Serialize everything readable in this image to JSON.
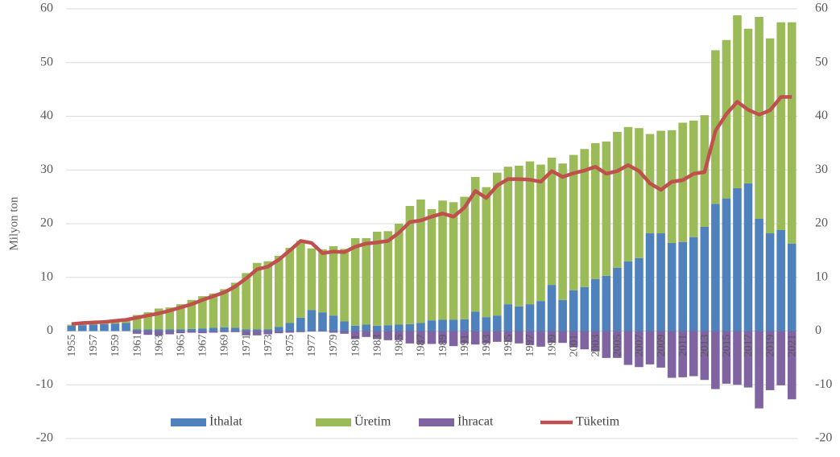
{
  "chart_data": {
    "type": "bar",
    "stacked": true,
    "ylabel": "Milyon ton",
    "categories": [
      "1955",
      null,
      "1957",
      null,
      "1959",
      null,
      "1961",
      null,
      "1963",
      null,
      "1965",
      null,
      "1967",
      null,
      "1969",
      null,
      "1971",
      null,
      "1973",
      null,
      "1975",
      null,
      "1977",
      null,
      "1979",
      null,
      "1981",
      null,
      "1983",
      null,
      "1985",
      null,
      "1987",
      null,
      "1989",
      null,
      "1991",
      null,
      "1993",
      null,
      "1995",
      null,
      "1997",
      null,
      "1999",
      null,
      "2001",
      null,
      "2003",
      null,
      "2005",
      null,
      "2007",
      null,
      "2009",
      null,
      "2011",
      null,
      "2013",
      null,
      "2015",
      null,
      "2017",
      null,
      "2019",
      null,
      "2021"
    ],
    "series": [
      {
        "name": "İthalat",
        "type": "bar",
        "color": "#4f81bd",
        "values": [
          1.0,
          1.1,
          1.2,
          1.3,
          1.4,
          1.5,
          0.3,
          0.3,
          0.3,
          0.3,
          0.3,
          0.4,
          0.5,
          0.6,
          0.7,
          0.6,
          0.3,
          0.3,
          0.3,
          0.8,
          1.5,
          2.5,
          3.9,
          3.5,
          2.9,
          1.8,
          1.0,
          1.2,
          1.0,
          1.1,
          1.2,
          1.3,
          1.5,
          2.0,
          2.1,
          2.1,
          2.2,
          3.6,
          2.6,
          2.9,
          5.0,
          4.6,
          5.0,
          5.6,
          8.6,
          5.8,
          7.6,
          8.2,
          9.7,
          10.3,
          11.8,
          13.0,
          13.6,
          18.2,
          18.2,
          16.4,
          16.6,
          17.5,
          19.4,
          23.7,
          24.7,
          26.6,
          27.5,
          20.9,
          18.2,
          18.8,
          16.3
        ]
      },
      {
        "name": "Üretim",
        "type": "bar",
        "color": "#9bbb59",
        "values": [
          0.2,
          0.3,
          0.3,
          0.4,
          0.5,
          0.6,
          2.7,
          3.2,
          3.9,
          4.1,
          4.7,
          5.4,
          6.0,
          6.4,
          7.1,
          8.4,
          10.5,
          12.4,
          12.7,
          13.2,
          14.0,
          14.3,
          11.5,
          11.7,
          12.9,
          13.5,
          16.3,
          16.1,
          17.5,
          17.5,
          18.8,
          22.0,
          23.0,
          20.7,
          22.2,
          21.9,
          22.8,
          25.1,
          24.2,
          26.6,
          25.6,
          26.2,
          26.6,
          25.4,
          23.7,
          25.4,
          25.2,
          25.7,
          25.3,
          25.0,
          25.3,
          25.0,
          24.2,
          18.5,
          19.1,
          21.0,
          22.2,
          21.7,
          20.8,
          28.6,
          29.5,
          32.2,
          28.8,
          37.6,
          36.3,
          38.7,
          41.2
        ]
      },
      {
        "name": "İhracat",
        "type": "bar",
        "color": "#8064a2",
        "values": [
          0,
          0,
          0,
          0,
          0,
          0,
          -0.5,
          -0.7,
          -0.8,
          -0.6,
          -0.4,
          -0.3,
          -0.4,
          -0.3,
          -0.2,
          -0.2,
          -0.8,
          -0.8,
          -0.6,
          -0.4,
          -0.3,
          -0.2,
          -0.1,
          -0.1,
          -0.3,
          -0.5,
          -1.5,
          -1.1,
          -1.5,
          -1.7,
          -1.7,
          -2.3,
          -2.4,
          -2.4,
          -2.3,
          -2.8,
          -2.3,
          -2.5,
          -2.3,
          -2.0,
          -2.0,
          -2.3,
          -2.6,
          -2.9,
          -2.2,
          -2.2,
          -3.0,
          -3.4,
          -3.8,
          -5.0,
          -5.0,
          -6.3,
          -6.7,
          -6.2,
          -6.8,
          -8.7,
          -8.6,
          -8.4,
          -9.1,
          -10.8,
          -9.8,
          -10.0,
          -10.5,
          -14.4,
          -11.0,
          -10.1,
          -12.7
        ]
      },
      {
        "name": "Tüketim",
        "type": "line",
        "color": "#c0504d",
        "values": [
          1.3,
          1.5,
          1.6,
          1.7,
          1.9,
          2.1,
          2.5,
          2.9,
          3.3,
          3.8,
          4.4,
          5.0,
          5.8,
          6.5,
          7.2,
          8.3,
          9.8,
          11.5,
          12.0,
          13.3,
          15.0,
          16.8,
          16.4,
          14.5,
          14.8,
          14.7,
          15.7,
          16.3,
          16.5,
          16.8,
          18.3,
          20.3,
          20.6,
          21.3,
          21.9,
          21.3,
          23.0,
          26.1,
          24.8,
          27.1,
          28.3,
          28.3,
          28.2,
          27.8,
          29.8,
          28.7,
          29.4,
          29.9,
          30.6,
          29.3,
          29.8,
          30.9,
          29.8,
          27.5,
          26.3,
          27.8,
          28.1,
          29.3,
          29.6,
          37.3,
          40.4,
          42.7,
          41.2,
          40.3,
          41.1,
          43.6,
          43.6
        ]
      }
    ],
    "ylim": [
      -20,
      60
    ],
    "yticks": [
      -20,
      -10,
      0,
      10,
      20,
      30,
      40,
      50,
      60
    ],
    "y2lim": [
      -20,
      60
    ],
    "y2ticks": [
      -20,
      -10,
      0,
      10,
      20,
      30,
      40,
      50,
      60
    ],
    "grid": true,
    "legend": "bottom"
  }
}
